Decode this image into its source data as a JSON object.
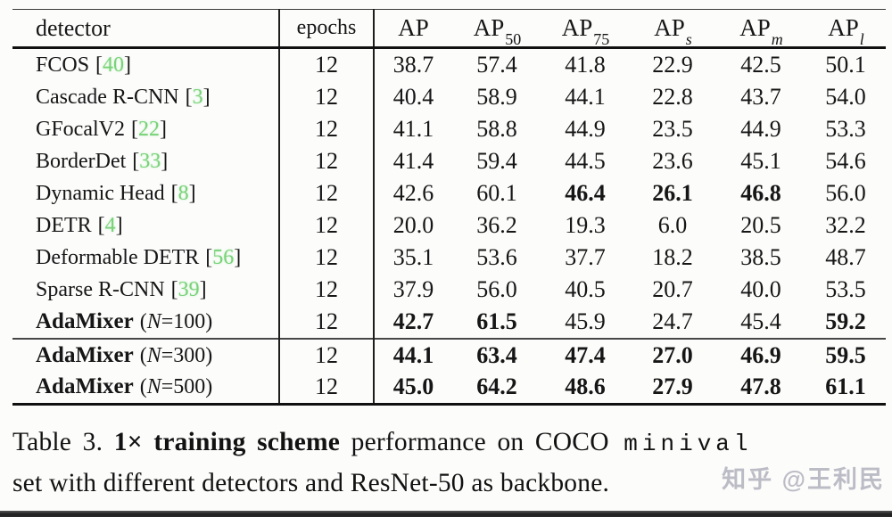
{
  "table": {
    "bracket_open": "[",
    "bracket_close": "]",
    "header": {
      "detector": "detector",
      "epochs": "epochs",
      "metrics": [
        {
          "base": "AP",
          "sub": ""
        },
        {
          "base": "AP",
          "sub": "50"
        },
        {
          "base": "AP",
          "sub": "75"
        },
        {
          "base": "AP",
          "sub": "s"
        },
        {
          "base": "AP",
          "sub": "m"
        },
        {
          "base": "AP",
          "sub": "l"
        }
      ]
    },
    "rows": [
      {
        "name": "FCOS",
        "cite": "40",
        "epochs": "12",
        "values": [
          "38.7",
          "57.4",
          "41.8",
          "22.9",
          "42.5",
          "50.1"
        ],
        "bold": [
          0,
          0,
          0,
          0,
          0,
          0
        ]
      },
      {
        "name": "Cascade R-CNN",
        "cite": "3",
        "epochs": "12",
        "values": [
          "40.4",
          "58.9",
          "44.1",
          "22.8",
          "43.7",
          "54.0"
        ],
        "bold": [
          0,
          0,
          0,
          0,
          0,
          0
        ]
      },
      {
        "name": "GFocalV2",
        "cite": "22",
        "epochs": "12",
        "values": [
          "41.1",
          "58.8",
          "44.9",
          "23.5",
          "44.9",
          "53.3"
        ],
        "bold": [
          0,
          0,
          0,
          0,
          0,
          0
        ]
      },
      {
        "name": "BorderDet",
        "cite": "33",
        "epochs": "12",
        "values": [
          "41.4",
          "59.4",
          "44.5",
          "23.6",
          "45.1",
          "54.6"
        ],
        "bold": [
          0,
          0,
          0,
          0,
          0,
          0
        ]
      },
      {
        "name": "Dynamic Head",
        "cite": "8",
        "epochs": "12",
        "values": [
          "42.6",
          "60.1",
          "46.4",
          "26.1",
          "46.8",
          "56.0"
        ],
        "bold": [
          0,
          0,
          1,
          1,
          1,
          0
        ]
      },
      {
        "name": "DETR",
        "cite": "4",
        "epochs": "12",
        "values": [
          "20.0",
          "36.2",
          "19.3",
          "6.0",
          "20.5",
          "32.2"
        ],
        "bold": [
          0,
          0,
          0,
          0,
          0,
          0
        ]
      },
      {
        "name": "Deformable DETR",
        "cite": "56",
        "epochs": "12",
        "values": [
          "35.1",
          "53.6",
          "37.7",
          "18.2",
          "38.5",
          "48.7"
        ],
        "bold": [
          0,
          0,
          0,
          0,
          0,
          0
        ]
      },
      {
        "name": "Sparse R-CNN",
        "cite": "39",
        "epochs": "12",
        "values": [
          "37.9",
          "56.0",
          "40.5",
          "20.7",
          "40.0",
          "53.5"
        ],
        "bold": [
          0,
          0,
          0,
          0,
          0,
          0
        ]
      },
      {
        "name": "AdaMixer",
        "name_bold": true,
        "paren": "(",
        "n_italic": "N",
        "n_rest": "=100)",
        "epochs": "12",
        "values": [
          "42.7",
          "61.5",
          "45.9",
          "24.7",
          "45.4",
          "59.2"
        ],
        "bold": [
          1,
          1,
          0,
          0,
          0,
          1
        ]
      },
      {
        "name": "AdaMixer",
        "name_bold": true,
        "paren": "(",
        "n_italic": "N",
        "n_rest": "=300)",
        "epochs": "12",
        "values": [
          "44.1",
          "63.4",
          "47.4",
          "27.0",
          "46.9",
          "59.5"
        ],
        "bold": [
          1,
          1,
          1,
          1,
          1,
          1
        ],
        "midrule_above": true
      },
      {
        "name": "AdaMixer",
        "name_bold": true,
        "paren": "(",
        "n_italic": "N",
        "n_rest": "=500)",
        "epochs": "12",
        "values": [
          "45.0",
          "64.2",
          "48.6",
          "27.9",
          "47.8",
          "61.1"
        ],
        "bold": [
          1,
          1,
          1,
          1,
          1,
          1
        ]
      }
    ]
  },
  "caption": {
    "line1_prefix": "Table 3.",
    "line1_bold": "1× training scheme",
    "line1_mid": "performance on COCO",
    "line1_mono": "minival",
    "line2": "set with different detectors and ResNet-50 as backbone."
  },
  "watermark": "知乎 @王利民",
  "colors": {
    "citation_green": "#79d279",
    "watermark_gray": "#b0b0bc",
    "rule_black": "#101010"
  }
}
